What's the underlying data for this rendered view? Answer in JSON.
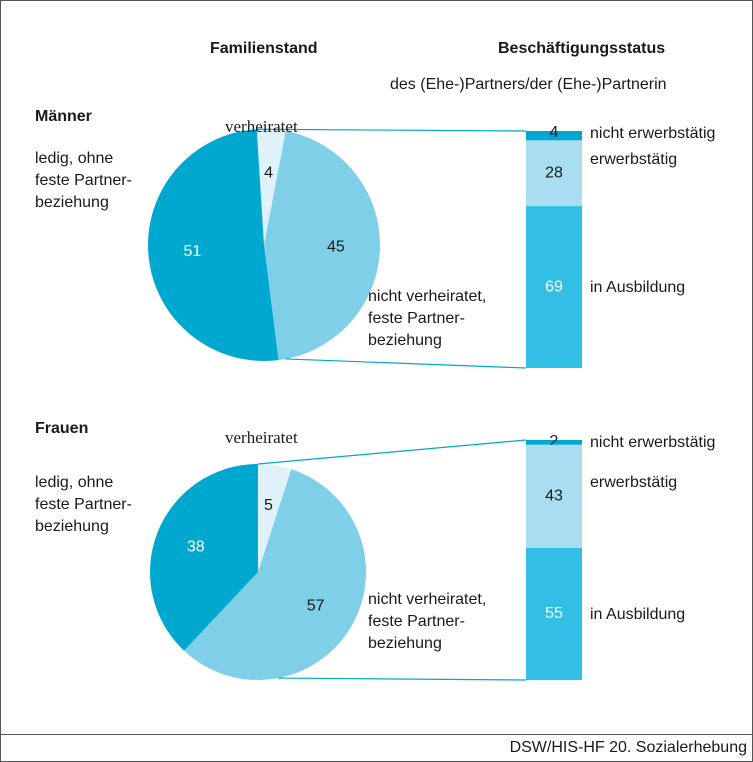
{
  "header": {
    "left": "Familienstand",
    "right": "Beschäftigungsstatus",
    "right_sub": "des (Ehe-)Partners/der (Ehe-)Partnerin"
  },
  "source": "DSW/HIS-HF 20. Sozialerhebung",
  "chart_data": [
    {
      "type": "pie",
      "title": "Männer",
      "categories": [
        "verheiratet",
        "nicht verheiratet,\nfeste Partner-\nbeziehung",
        "ledig, ohne\nfeste Partner-\nbeziehung"
      ],
      "values": [
        4,
        45,
        51
      ],
      "colors": [
        "#dff2f9",
        "#7fcfe8",
        "#00a8d0"
      ],
      "breakdown": {
        "categories": [
          "nicht erwerbstätig",
          "erwerbstätig",
          "in Ausbildung"
        ],
        "values": [
          4,
          28,
          69
        ],
        "colors": [
          "#00a8d0",
          "#a9def0",
          "#33bfe5"
        ]
      }
    },
    {
      "type": "pie",
      "title": "Frauen",
      "categories": [
        "verheiratet",
        "nicht verheiratet,\nfeste Partner-\nbeziehung",
        "ledig, ohne\nfeste Partner-\nbeziehung"
      ],
      "values": [
        5,
        57,
        38
      ],
      "colors": [
        "#dff2f9",
        "#7fcfe8",
        "#00a8d0"
      ],
      "breakdown": {
        "categories": [
          "nicht erwerbstätig",
          "erwerbstätig",
          "in Ausbildung"
        ],
        "values": [
          2,
          43,
          55
        ],
        "colors": [
          "#00a8d0",
          "#a9def0",
          "#33bfe5"
        ]
      }
    }
  ]
}
